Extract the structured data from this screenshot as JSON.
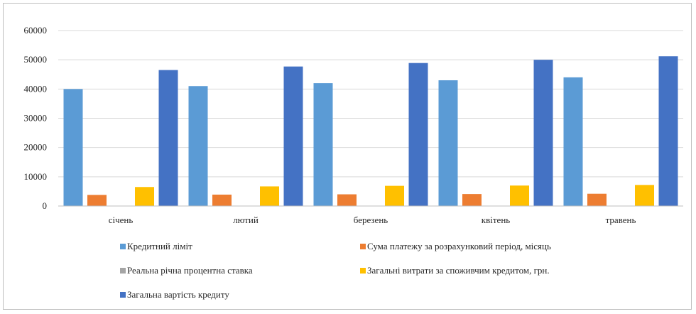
{
  "chart_data": {
    "type": "bar",
    "title": "",
    "xlabel": "",
    "ylabel": "",
    "ylim": [
      0,
      60000
    ],
    "yticks": [
      0,
      10000,
      20000,
      30000,
      40000,
      50000,
      60000
    ],
    "grid": true,
    "legend_position": "bottom",
    "categories": [
      "січень",
      "лютий",
      "березень",
      "квітень",
      "травень"
    ],
    "series": [
      {
        "name": "Кредитний ліміт",
        "color": "#5b9bd5",
        "values": [
          40000,
          41000,
          42000,
          43000,
          44000
        ]
      },
      {
        "name": "Сума платежу за розрахунковий період, місяць",
        "color": "#ed7d31",
        "values": [
          3800,
          3900,
          4000,
          4100,
          4200
        ]
      },
      {
        "name": "Реальна річна процентна ставка",
        "color": "#a5a5a5",
        "values": [
          0,
          0,
          0,
          0,
          0
        ]
      },
      {
        "name": "Загальні витрати за споживчим кредитом, грн.",
        "color": "#ffc000",
        "values": [
          6500,
          6700,
          6900,
          7000,
          7200
        ]
      },
      {
        "name": "Загальна вартість кредиту",
        "color": "#4472c4",
        "values": [
          46500,
          47700,
          48900,
          50000,
          51200
        ]
      }
    ]
  }
}
